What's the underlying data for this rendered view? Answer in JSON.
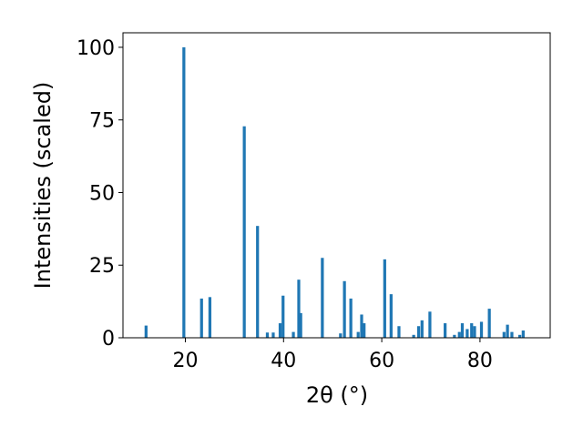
{
  "chart_data": {
    "type": "bar",
    "title": "",
    "xlabel": "2θ (°)",
    "ylabel": "Intensities (scaled)",
    "xlim": [
      7.3,
      94.3
    ],
    "ylim": [
      0,
      105
    ],
    "xticks": [
      20,
      40,
      60,
      80
    ],
    "yticks": [
      0,
      25,
      50,
      75,
      100
    ],
    "grid": false,
    "legend": "none",
    "bar_width": 0.6,
    "bar_color": "#1f77b4",
    "x": [
      12.0,
      19.7,
      23.3,
      25.0,
      32.0,
      34.7,
      36.7,
      37.9,
      39.3,
      39.9,
      42.0,
      43.1,
      43.5,
      47.9,
      51.6,
      52.4,
      53.7,
      55.2,
      55.9,
      56.4,
      60.6,
      61.9,
      63.5,
      66.5,
      67.5,
      68.2,
      69.8,
      72.9,
      74.8,
      75.8,
      76.4,
      77.4,
      78.3,
      78.9,
      80.3,
      81.9,
      84.9,
      85.6,
      86.5,
      88.1,
      88.8
    ],
    "values": [
      4.2,
      100,
      13.5,
      14.0,
      72.8,
      38.5,
      1.8,
      1.8,
      5.0,
      14.5,
      2.0,
      20.0,
      8.5,
      27.5,
      1.5,
      19.5,
      13.5,
      2.0,
      8.0,
      5.0,
      27.0,
      15.0,
      4.0,
      1.0,
      4.0,
      6.0,
      9.0,
      5.0,
      1.0,
      2.0,
      5.0,
      3.0,
      5.0,
      4.0,
      5.5,
      10.0,
      2.0,
      4.5,
      2.0,
      1.0,
      2.5
    ]
  }
}
